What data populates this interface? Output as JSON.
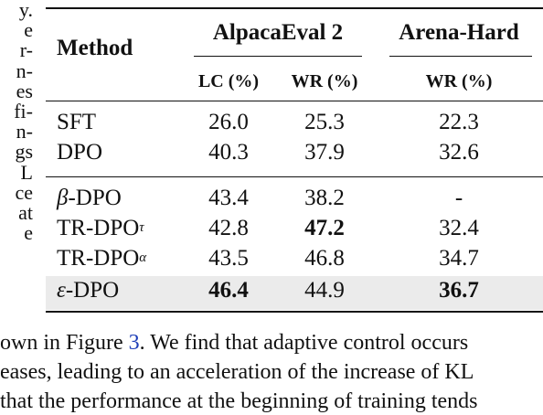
{
  "left_fragments": [
    "y.",
    "e",
    "r-",
    "n-",
    "es",
    "fi-",
    "n-",
    "gs",
    "L",
    "ce",
    "at",
    "e"
  ],
  "table": {
    "header": {
      "method": "Method",
      "group1": "AlpacaEval 2",
      "group2": "Arena-Hard",
      "sub_lc": "LC (%)",
      "sub_wr1": "WR (%)",
      "sub_wr2": "WR (%)"
    },
    "rows": [
      {
        "method": "SFT",
        "lc": "26.0",
        "wr": "25.3",
        "ah": "22.3"
      },
      {
        "method": "DPO",
        "lc": "40.3",
        "wr": "37.9",
        "ah": "32.6"
      },
      {
        "method_prefix": "β",
        "method": "-DPO",
        "lc": "43.4",
        "wr": "38.2",
        "ah": "-"
      },
      {
        "method": "TR-DPO",
        "sup": "τ",
        "lc": "42.8",
        "wr": "47.2",
        "ah": "32.4"
      },
      {
        "method": "TR-DPO",
        "sup": "α",
        "lc": "43.5",
        "wr": "46.8",
        "ah": "34.7"
      },
      {
        "method_prefix": "ε",
        "method": "-DPO",
        "lc": "46.4",
        "wr": "44.9",
        "ah": "36.7"
      }
    ]
  },
  "bottom": {
    "line1_pre": "own in Figure ",
    "line1_link": "3",
    "line1_post": ". We find that adaptive control occurs",
    "line2": "eases, leading to an acceleration of the increase of KL",
    "line3": "that the performance at the beginning of training tends"
  },
  "colors": {
    "link": "#1f3fb8",
    "highlight": "#ebebeb"
  }
}
